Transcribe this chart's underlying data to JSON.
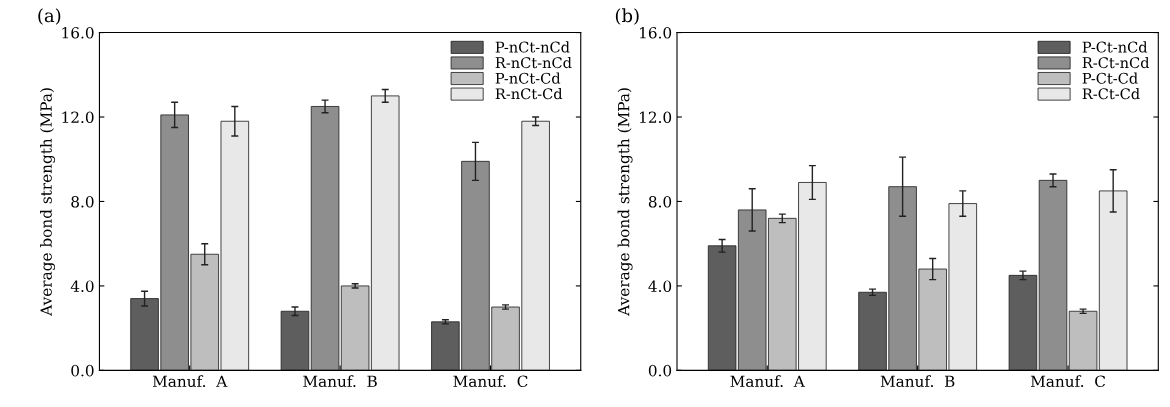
{
  "chart_data": [
    {
      "type": "bar",
      "title": "(a)",
      "ylabel": "Average bond strength (MPa)",
      "categories": [
        "Manuf.  A",
        "Manuf.  B",
        "Manuf.  C"
      ],
      "series": [
        {
          "name": "P-nCt-nCd",
          "color": "#5e5e5e",
          "values": [
            3.4,
            2.8,
            2.3
          ],
          "errors": [
            0.35,
            0.2,
            0.1
          ]
        },
        {
          "name": "R-nCt-nCd",
          "color": "#8e8e8e",
          "values": [
            12.1,
            12.5,
            9.9
          ],
          "errors": [
            0.6,
            0.3,
            0.9
          ]
        },
        {
          "name": "P-nCt-Cd",
          "color": "#bebebe",
          "values": [
            5.5,
            4.0,
            3.0
          ],
          "errors": [
            0.5,
            0.1,
            0.1
          ]
        },
        {
          "name": "R-nCt-Cd",
          "color": "#e8e8e8",
          "values": [
            11.8,
            13.0,
            11.8
          ],
          "errors": [
            0.7,
            0.3,
            0.2
          ]
        }
      ],
      "ylim": [
        0,
        16
      ],
      "yticks": [
        {
          "value": 0,
          "label": "0.0"
        },
        {
          "value": 4,
          "label": "4.0"
        },
        {
          "value": 8,
          "label": "8.0"
        },
        {
          "value": 12,
          "label": "12.0"
        },
        {
          "value": 16,
          "label": "16.0"
        }
      ],
      "legend": "top right",
      "grid": false
    },
    {
      "type": "bar",
      "title": "(b)",
      "ylabel": "Average bond strength (MPa)",
      "categories": [
        "Manuf.  A",
        "Manuf.  B",
        "Manuf.  C"
      ],
      "series": [
        {
          "name": "P-Ct-nCd",
          "color": "#5e5e5e",
          "values": [
            5.9,
            3.7,
            4.5
          ],
          "errors": [
            0.3,
            0.15,
            0.2
          ]
        },
        {
          "name": "R-Ct-nCd",
          "color": "#8e8e8e",
          "values": [
            7.6,
            8.7,
            9.0
          ],
          "errors": [
            1.0,
            1.4,
            0.3
          ]
        },
        {
          "name": "P-Ct-Cd",
          "color": "#bebebe",
          "values": [
            7.2,
            4.8,
            2.8
          ],
          "errors": [
            0.2,
            0.5,
            0.1
          ]
        },
        {
          "name": "R-Ct-Cd",
          "color": "#e8e8e8",
          "values": [
            8.9,
            7.9,
            8.5
          ],
          "errors": [
            0.8,
            0.6,
            1.0
          ]
        }
      ],
      "ylim": [
        0,
        16
      ],
      "yticks": [
        {
          "value": 0,
          "label": "0.0"
        },
        {
          "value": 4,
          "label": "4.0"
        },
        {
          "value": 8,
          "label": "8.0"
        },
        {
          "value": 12,
          "label": "12.0"
        },
        {
          "value": 16,
          "label": "16.0"
        }
      ],
      "legend": "top right",
      "grid": false
    }
  ]
}
